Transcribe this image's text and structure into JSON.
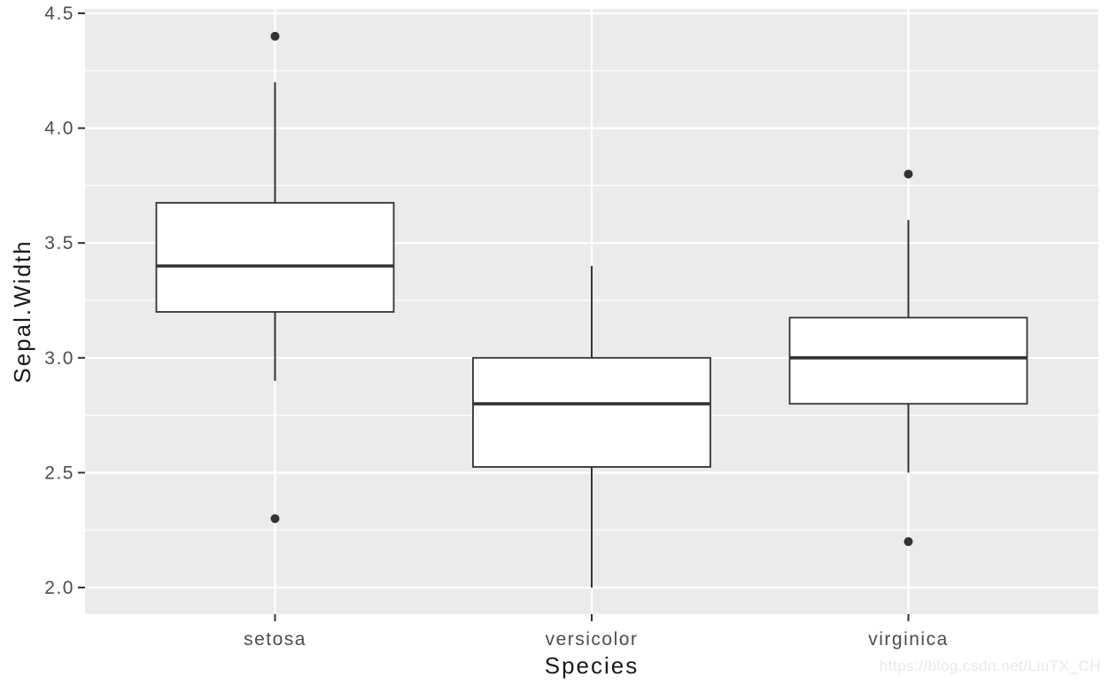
{
  "page": {
    "watermark": "https://blog.csdn.net/LiuTX_CH"
  },
  "chart_data": {
    "type": "boxplot",
    "title": "",
    "xlabel": "Species",
    "ylabel": "Sepal.Width",
    "categories": [
      "setosa",
      "versicolor",
      "virginica"
    ],
    "y_ticks": [
      2.0,
      2.5,
      3.0,
      3.5,
      4.0,
      4.5
    ],
    "y_minor_ticks": [
      2.25,
      2.75,
      3.25,
      3.75,
      4.25
    ],
    "ylim": [
      1.88,
      4.52
    ],
    "grid": {
      "horizontal_major": true,
      "horizontal_minor": true,
      "vertical_at_categories": true
    },
    "legend": "none",
    "series": [
      {
        "name": "setosa",
        "lower_whisker": 2.9,
        "q1": 3.2,
        "median": 3.4,
        "q3": 3.675,
        "upper_whisker": 4.2,
        "outliers": [
          4.4,
          2.3
        ]
      },
      {
        "name": "versicolor",
        "lower_whisker": 2.0,
        "q1": 2.525,
        "median": 2.8,
        "q3": 3.0,
        "upper_whisker": 3.4,
        "outliers": []
      },
      {
        "name": "virginica",
        "lower_whisker": 2.5,
        "q1": 2.8,
        "median": 3.0,
        "q3": 3.175,
        "upper_whisker": 3.6,
        "outliers": [
          3.8,
          2.2
        ]
      }
    ],
    "colors": {
      "panel_background": "#ebebeb",
      "gridline": "#ffffff",
      "box_fill": "#ffffff",
      "box_stroke": "#333333",
      "outlier": "#333333",
      "tick_mark": "#333333",
      "axis_text": "#4d4d4d",
      "axis_title": "#1a1a1a",
      "watermark": "#e8e8e8"
    }
  }
}
